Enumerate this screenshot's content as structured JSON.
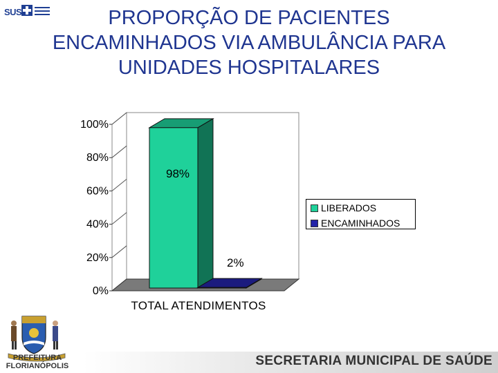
{
  "header": {
    "logo_text": "SUS",
    "title_lines": [
      "PROPORÇÃO DE PACIENTES",
      "ENCAMINHADOS VIA AMBULÂNCIA PARA",
      "UNIDADES HOSPITALARES"
    ]
  },
  "chart_data": {
    "type": "bar",
    "categories": [
      "TOTAL ATENDIMENTOS"
    ],
    "series": [
      {
        "name": "LIBERADOS",
        "values": [
          98
        ],
        "color": "#1fd19a",
        "label": "98%"
      },
      {
        "name": "ENCAMINHADOS",
        "values": [
          2
        ],
        "color": "#2424a8",
        "label": "2%"
      }
    ],
    "y_ticks": [
      "0%",
      "20%",
      "40%",
      "60%",
      "80%",
      "100%"
    ],
    "ylim": [
      0,
      100
    ],
    "legend_position": "right",
    "three_d": true
  },
  "footer": {
    "prefeitura_line1": "PREFEITURA",
    "prefeitura_line2": "FLORIANÓPOLIS",
    "secretaria": "SECRETARIA MUNICIPAL DE SAÚDE"
  }
}
